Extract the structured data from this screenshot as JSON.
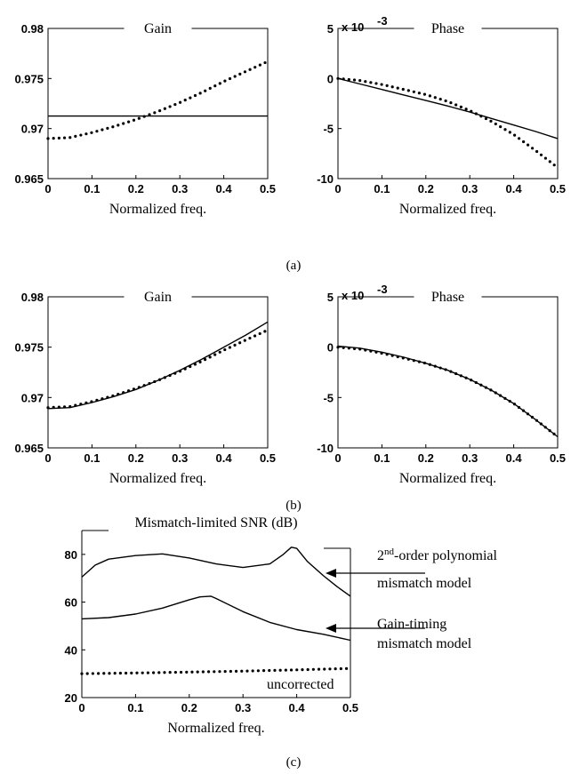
{
  "captions": [
    "(a)",
    "(b)",
    "(c)"
  ],
  "chart_data": [
    {
      "type": "line",
      "panel": "a",
      "title": "Gain",
      "xlabel": "Normalized freq.",
      "xlim": [
        0,
        0.5
      ],
      "ylim": [
        0.965,
        0.98
      ],
      "xticks": [
        "0",
        "0.1",
        "0.2",
        "0.3",
        "0.4",
        "0.5"
      ],
      "yticks": [
        "0.965",
        "0.97",
        "0.975",
        "0.98"
      ],
      "x": [
        0,
        0.05,
        0.1,
        0.15,
        0.2,
        0.25,
        0.3,
        0.35,
        0.4,
        0.45,
        0.5
      ],
      "series": [
        {
          "style": "solid",
          "values": [
            0.97125,
            0.97125,
            0.97125,
            0.97125,
            0.97125,
            0.97125,
            0.97125,
            0.97125,
            0.97125,
            0.97125,
            0.97125
          ]
        },
        {
          "style": "dotted",
          "values": [
            0.969,
            0.9691,
            0.9696,
            0.9702,
            0.9709,
            0.9717,
            0.9726,
            0.9736,
            0.9747,
            0.9757,
            0.9767
          ]
        }
      ]
    },
    {
      "type": "line",
      "panel": "a",
      "title": "Phase",
      "scale_note": "x 10",
      "scale_exp": "-3",
      "xlabel": "Normalized freq.",
      "xlim": [
        0,
        0.5
      ],
      "ylim": [
        -10,
        5
      ],
      "xticks": [
        "0",
        "0.1",
        "0.2",
        "0.3",
        "0.4",
        "0.5"
      ],
      "yticks": [
        "-10",
        "-5",
        "0",
        "5"
      ],
      "x": [
        0,
        0.05,
        0.1,
        0.15,
        0.2,
        0.25,
        0.3,
        0.35,
        0.4,
        0.45,
        0.5
      ],
      "series": [
        {
          "style": "solid",
          "values": [
            0,
            -0.55,
            -1.1,
            -1.65,
            -2.2,
            -2.75,
            -3.35,
            -4.0,
            -4.65,
            -5.3,
            -6.0
          ]
        },
        {
          "style": "dotted",
          "values": [
            0,
            -0.2,
            -0.6,
            -1.1,
            -1.6,
            -2.3,
            -3.2,
            -4.3,
            -5.6,
            -7.2,
            -8.9
          ]
        }
      ]
    },
    {
      "type": "line",
      "panel": "b",
      "title": "Gain",
      "xlabel": "Normalized freq.",
      "xlim": [
        0,
        0.5
      ],
      "ylim": [
        0.965,
        0.98
      ],
      "xticks": [
        "0",
        "0.1",
        "0.2",
        "0.3",
        "0.4",
        "0.5"
      ],
      "yticks": [
        "0.965",
        "0.97",
        "0.975",
        "0.98"
      ],
      "x": [
        0,
        0.05,
        0.1,
        0.15,
        0.2,
        0.25,
        0.3,
        0.35,
        0.4,
        0.45,
        0.5
      ],
      "series": [
        {
          "style": "solid",
          "values": [
            0.9689,
            0.969,
            0.9695,
            0.9701,
            0.9708,
            0.9717,
            0.9727,
            0.9738,
            0.975,
            0.9762,
            0.9775
          ]
        },
        {
          "style": "dotted",
          "values": [
            0.969,
            0.9691,
            0.9696,
            0.9702,
            0.9709,
            0.9717,
            0.9726,
            0.9736,
            0.9747,
            0.9757,
            0.9767
          ]
        }
      ]
    },
    {
      "type": "line",
      "panel": "b",
      "title": "Phase",
      "scale_note": "x 10",
      "scale_exp": "-3",
      "xlabel": "Normalized freq.",
      "xlim": [
        0,
        0.5
      ],
      "ylim": [
        -10,
        5
      ],
      "xticks": [
        "0",
        "0.1",
        "0.2",
        "0.3",
        "0.4",
        "0.5"
      ],
      "yticks": [
        "-10",
        "-5",
        "0",
        "5"
      ],
      "x": [
        0,
        0.05,
        0.1,
        0.15,
        0.2,
        0.25,
        0.3,
        0.35,
        0.4,
        0.45,
        0.5
      ],
      "series": [
        {
          "style": "solid",
          "values": [
            0.1,
            -0.1,
            -0.5,
            -1.0,
            -1.6,
            -2.3,
            -3.2,
            -4.3,
            -5.6,
            -7.2,
            -8.9
          ]
        },
        {
          "style": "dotted",
          "values": [
            0,
            -0.2,
            -0.6,
            -1.1,
            -1.6,
            -2.3,
            -3.2,
            -4.3,
            -5.6,
            -7.2,
            -8.9
          ]
        }
      ]
    },
    {
      "type": "line",
      "panel": "c",
      "title": "Mismatch-limited SNR (dB)",
      "xlabel": "Normalized freq.",
      "xlim": [
        0,
        0.5
      ],
      "ylim": [
        20,
        90
      ],
      "xticks": [
        "0",
        "0.1",
        "0.2",
        "0.3",
        "0.4",
        "0.5"
      ],
      "yticks": [
        "20",
        "40",
        "60",
        "80"
      ],
      "series": [
        {
          "name_parts": [
            "2",
            "nd",
            "-order polynomial",
            "mismatch model"
          ],
          "style": "solid",
          "x": [
            0,
            0.025,
            0.05,
            0.1,
            0.15,
            0.2,
            0.25,
            0.3,
            0.35,
            0.375,
            0.39,
            0.4,
            0.42,
            0.45,
            0.475,
            0.5
          ],
          "values": [
            70.5,
            75.5,
            78,
            79.5,
            80.2,
            78.5,
            76,
            74.5,
            76,
            80,
            83,
            82.5,
            77,
            71,
            66.5,
            62.5
          ]
        },
        {
          "name_parts": [
            "Gain-timing",
            "mismatch model"
          ],
          "style": "solid",
          "x": [
            0,
            0.05,
            0.1,
            0.15,
            0.2,
            0.22,
            0.24,
            0.25,
            0.3,
            0.35,
            0.4,
            0.45,
            0.5
          ],
          "values": [
            53,
            53.5,
            55,
            57.5,
            61,
            62.2,
            62.5,
            61.5,
            56,
            51.5,
            48.5,
            46.5,
            44
          ]
        },
        {
          "name": "uncorrected",
          "style": "dotted",
          "x": [
            0,
            0.1,
            0.2,
            0.3,
            0.4,
            0.5
          ],
          "values": [
            30,
            30.3,
            30.7,
            31.1,
            31.6,
            32.2
          ]
        }
      ]
    }
  ]
}
